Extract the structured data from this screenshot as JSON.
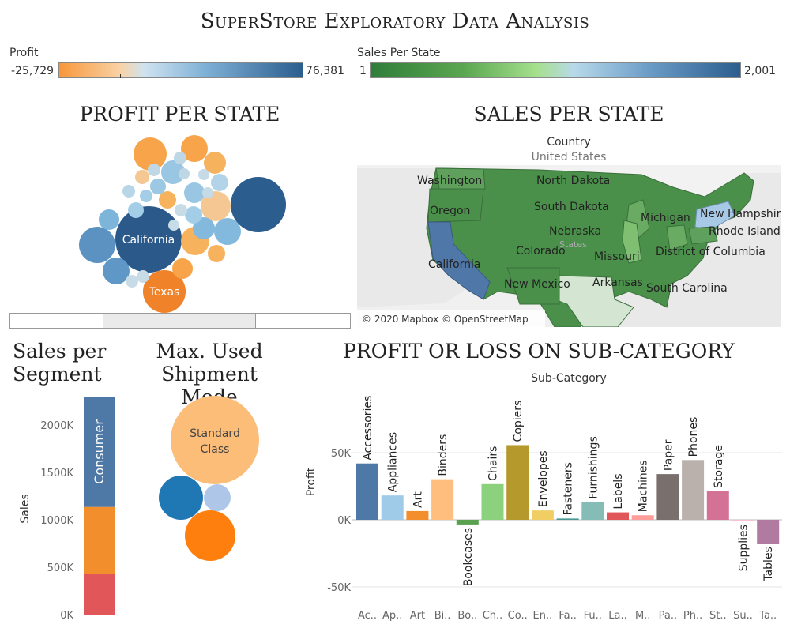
{
  "title": "SuperStore Exploratory Data Analysis",
  "legends": {
    "profit": {
      "label": "Profit",
      "min": "-25,729",
      "max": "76,381"
    },
    "sales": {
      "label": "Sales Per State",
      "min": "1",
      "max": "2,001"
    }
  },
  "colors": {
    "profit_neg": "#f7973a",
    "profit_mid": "#c4dff0",
    "profit_pos": "#2b5d8e",
    "sales_low": "#2f7d3a",
    "sales_mid": "#9fdc8a",
    "sales_high": "#2b5d8e"
  },
  "profit_per_state": {
    "title": "PROFIT PER STATE",
    "bubbles": [
      {
        "label": "California",
        "color": "#2b5a8a",
        "text_color": "#ffffff"
      },
      {
        "label": "Texas",
        "color": "#f0822a",
        "text_color": "#ffffff"
      },
      {
        "label": "",
        "color": "#2b5d8e"
      },
      {
        "label": "",
        "color": "#5b92c2"
      },
      {
        "label": "",
        "color": "#5f98c6"
      },
      {
        "label": "",
        "color": "#7db4da"
      },
      {
        "label": "",
        "color": "#f7a44a"
      },
      {
        "label": "",
        "color": "#f7a44a"
      },
      {
        "label": "",
        "color": "#f7b25e"
      },
      {
        "label": "",
        "color": "#f7b25e"
      },
      {
        "label": "",
        "color": "#f5c792"
      },
      {
        "label": "",
        "color": "#f7a44a"
      },
      {
        "label": "",
        "color": "#84b9de"
      },
      {
        "label": "",
        "color": "#84b9de"
      },
      {
        "label": "",
        "color": "#98c6e3"
      },
      {
        "label": "",
        "color": "#98c6e3"
      },
      {
        "label": "",
        "color": "#f7b25e"
      },
      {
        "label": "",
        "color": "#a4cde7"
      },
      {
        "label": "",
        "color": "#a4cde7"
      },
      {
        "label": "",
        "color": "#f7b25e"
      },
      {
        "label": "",
        "color": "#b3d4e8"
      },
      {
        "label": "",
        "color": "#f5c792"
      },
      {
        "label": "",
        "color": "#9cc8e4"
      },
      {
        "label": "",
        "color": "#a4cde7"
      },
      {
        "label": "",
        "color": "#b8d6e8"
      },
      {
        "label": "",
        "color": "#c0d8e6"
      },
      {
        "label": "",
        "color": "#bfd7e5"
      },
      {
        "label": "",
        "color": "#bfd7e5"
      },
      {
        "label": "",
        "color": "#c5dbe7"
      },
      {
        "label": "",
        "color": "#c5dbe7"
      },
      {
        "label": "",
        "color": "#c8dce7"
      },
      {
        "label": "",
        "color": "#c8dce7"
      },
      {
        "label": "",
        "color": "#c8dce7"
      },
      {
        "label": "",
        "color": "#c8dce7"
      }
    ]
  },
  "sales_per_state": {
    "title": "SALES PER STATE",
    "header": "Country",
    "subheader": "United States",
    "attribution": "© 2020 Mapbox © OpenStreetMap",
    "states": [
      "Washington",
      "North Dakota",
      "Oregon",
      "South Dakota",
      "Michigan",
      "New Hampshire",
      "Nebraska",
      "Rhode Island",
      "Colorado",
      "Missouri",
      "District of Columbia",
      "California",
      "New Mexico",
      "Arkansas",
      "South Carolina"
    ],
    "watermark": "States"
  },
  "sales_per_segment": {
    "title_line1": "Sales per",
    "title_line2": "Segment",
    "ylabel": "Sales",
    "ticks": [
      "0K",
      "500K",
      "1000K",
      "1500K",
      "2000K"
    ],
    "segment_label": "Consumer"
  },
  "shipment_mode": {
    "title_line1": "Max. Used",
    "title_line2": "Shipment Mode",
    "bubble_line1": "Standard",
    "bubble_line2": "Class"
  },
  "subcategory": {
    "title": "PROFIT OR LOSS ON SUB-CATEGORY",
    "header": "Sub-Category",
    "ylabel": "Profit",
    "yticks": [
      "50K",
      "0K",
      "-50K"
    ]
  },
  "chart_data": [
    {
      "type": "bar",
      "title": "PROFIT OR LOSS ON SUB-CATEGORY",
      "xlabel": "Sub-Category",
      "ylabel": "Profit",
      "ylim": [
        -70000,
        95000
      ],
      "categories": [
        "Accessories",
        "Appliances",
        "Art",
        "Binders",
        "Bookcases",
        "Chairs",
        "Copiers",
        "Envelopes",
        "Fasteners",
        "Furnishings",
        "Labels",
        "Machines",
        "Paper",
        "Phones",
        "Storage",
        "Supplies",
        "Tables"
      ],
      "short_labels": [
        "Ac..",
        "Ap..",
        "Art",
        "Bi..",
        "Bo..",
        "Ch..",
        "Co..",
        "En..",
        "Fa..",
        "Fu..",
        "La..",
        "M..",
        "Pa..",
        "Ph..",
        "St..",
        "Su..",
        "Ta.."
      ],
      "values": [
        41937,
        18138,
        6528,
        30222,
        -3473,
        26590,
        55618,
        6964,
        950,
        13059,
        5546,
        3385,
        34054,
        44516,
        21279,
        -1189,
        -17725
      ],
      "colors": [
        "#4e79a7",
        "#a0cbe8",
        "#f28e2b",
        "#ffbe7d",
        "#59a14f",
        "#8cd17d",
        "#b6992d",
        "#f1ce63",
        "#499894",
        "#86bcb6",
        "#e15759",
        "#ff9d9a",
        "#79706e",
        "#bab0ac",
        "#d37295",
        "#fabfd2",
        "#b07aa1"
      ]
    },
    {
      "type": "bar",
      "title": "Sales per Segment",
      "ylabel": "Sales",
      "ylim": [
        0,
        2400000
      ],
      "categories": [
        "Segment"
      ],
      "series": [
        {
          "name": "Consumer",
          "values": [
            1161401
          ]
        },
        {
          "name": "",
          "values": [
            706146
          ]
        },
        {
          "name": "",
          "values": [
            429653
          ]
        }
      ],
      "colors": [
        "#4e79a7",
        "#f28e2b",
        "#e15759"
      ]
    }
  ]
}
